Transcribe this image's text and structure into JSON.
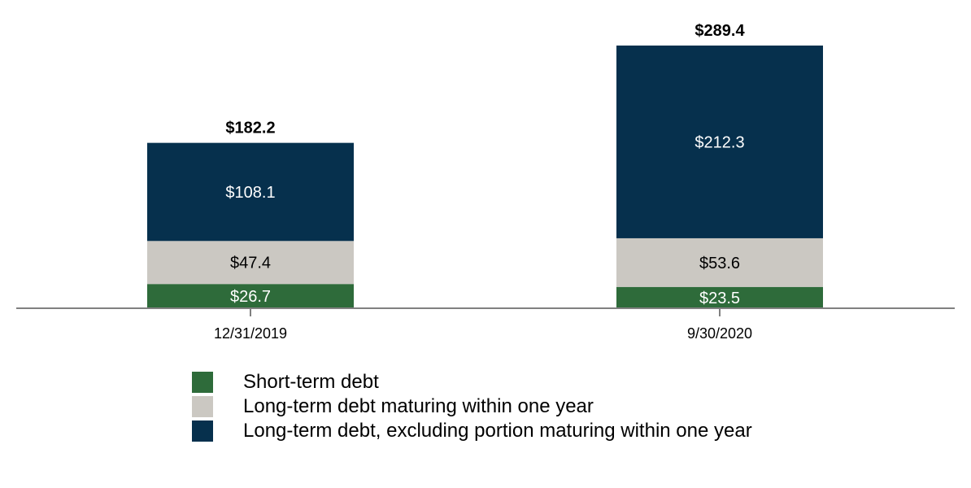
{
  "chart_data": {
    "type": "bar",
    "stacked": true,
    "categories": [
      "12/31/2019",
      "9/30/2020"
    ],
    "totals": [
      "$182.2",
      "$289.4"
    ],
    "series": [
      {
        "name": "Short-term debt",
        "values": [
          26.7,
          23.5
        ],
        "labels": [
          "$26.7",
          "$23.5"
        ],
        "color": "#2e6b3a",
        "label_color": "#ffffff"
      },
      {
        "name": "Long-term debt maturing within one year",
        "values": [
          47.4,
          53.6
        ],
        "labels": [
          "$47.4",
          "$53.6"
        ],
        "color": "#cbc8c2",
        "label_color": "#000000"
      },
      {
        "name": "Long-term debt, excluding portion maturing within one year",
        "values": [
          108.1,
          212.3
        ],
        "labels": [
          "$108.1",
          "$212.3"
        ],
        "color": "#06304d",
        "label_color": "#ffffff"
      }
    ],
    "ylim": [
      0,
      289.4
    ],
    "grid": false,
    "legend_position": "bottom"
  }
}
